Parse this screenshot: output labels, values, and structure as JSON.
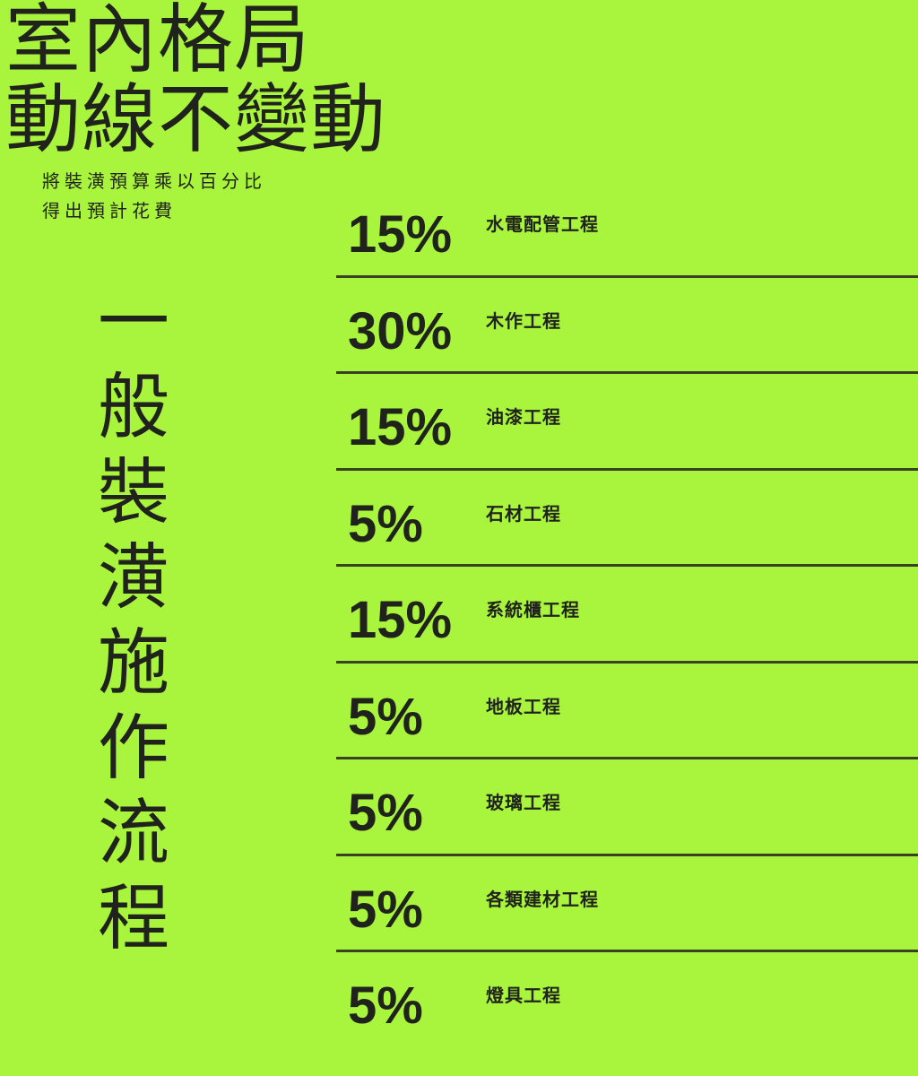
{
  "page": {
    "background_color": "#A9F43C",
    "text_color": "#20231B",
    "divider_color": "#3A4125"
  },
  "header": {
    "title_line1": "室內格局",
    "title_line2": "動線不變動",
    "subtitle_line1": "將裝潢預算乘以百分比",
    "subtitle_line2": "得出預計花費"
  },
  "side_title": {
    "text": "一般裝潢施作流程"
  },
  "breakdown": {
    "items": [
      {
        "percent": "15%",
        "label": "水電配管工程"
      },
      {
        "percent": "30%",
        "label": "木作工程"
      },
      {
        "percent": "15%",
        "label": "油漆工程"
      },
      {
        "percent": "5%",
        "label": "石材工程"
      },
      {
        "percent": "15%",
        "label": "系統櫃工程"
      },
      {
        "percent": "5%",
        "label": "地板工程"
      },
      {
        "percent": "5%",
        "label": "玻璃工程"
      },
      {
        "percent": "5%",
        "label": "各類建材工程"
      },
      {
        "percent": "5%",
        "label": "燈具工程"
      }
    ]
  },
  "chart_data": {
    "type": "table",
    "title": "一般裝潢施作流程",
    "subtitle": "將裝潢預算乘以百分比 得出預計花費",
    "categories": [
      "水電配管工程",
      "木作工程",
      "油漆工程",
      "石材工程",
      "系統櫃工程",
      "地板工程",
      "玻璃工程",
      "各類建材工程",
      "燈具工程"
    ],
    "values": [
      15,
      30,
      15,
      5,
      15,
      5,
      5,
      5,
      5
    ],
    "unit": "%",
    "legend_position": "none",
    "grid": "horizontal-dividers"
  }
}
